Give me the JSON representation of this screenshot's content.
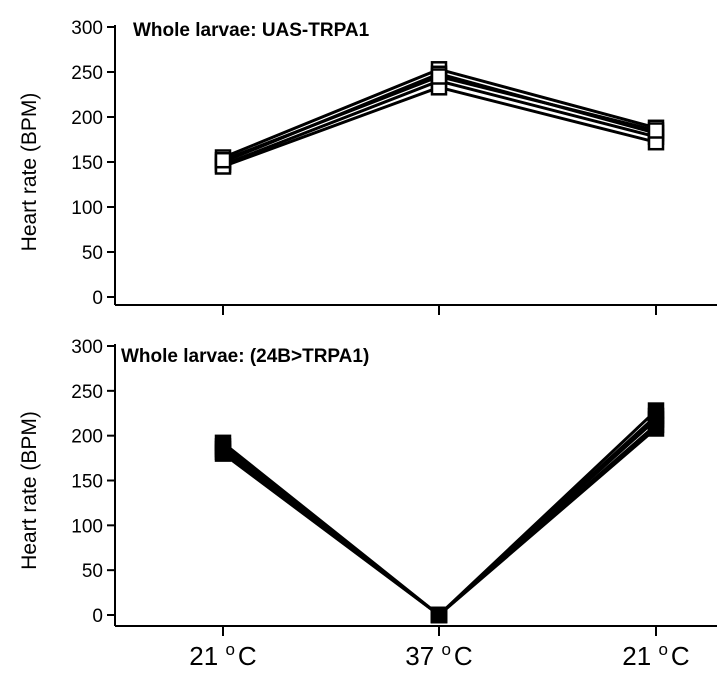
{
  "chart_data": [
    {
      "type": "line",
      "title": "Whole larvae: UAS-TRPA1",
      "ylabel": "Heart rate (BPM)",
      "xlabel": "",
      "ylim": [
        0,
        300
      ],
      "yticks": [
        0,
        50,
        100,
        150,
        200,
        250,
        300
      ],
      "categories": [
        "21 oC",
        "37 oC",
        "21 oC"
      ],
      "marker": "open-square",
      "series": [
        {
          "values": [
            155,
            253,
            188
          ]
        },
        {
          "values": [
            150,
            248,
            182
          ]
        },
        {
          "values": [
            147,
            240,
            178
          ]
        },
        {
          "values": [
            145,
            233,
            172
          ]
        },
        {
          "values": [
            152,
            245,
            185
          ]
        }
      ]
    },
    {
      "type": "line",
      "title": "Whole larvae: (24B>TRPA1)",
      "ylabel": "Heart rate (BPM)",
      "xlabel": "",
      "ylim": [
        0,
        300
      ],
      "yticks": [
        0,
        50,
        100,
        150,
        200,
        250,
        300
      ],
      "categories": [
        "21 oC",
        "37 oC",
        "21 oC"
      ],
      "marker": "filled-square",
      "series": [
        {
          "values": [
            192,
            0,
            228
          ]
        },
        {
          "values": [
            188,
            0,
            222
          ]
        },
        {
          "values": [
            185,
            0,
            218
          ]
        },
        {
          "values": [
            182,
            0,
            212
          ]
        },
        {
          "values": [
            180,
            0,
            208
          ]
        }
      ]
    }
  ],
  "x_axis": {
    "labels": [
      {
        "base": "21 ",
        "sup": "o",
        "unit": "C"
      },
      {
        "base": "37 ",
        "sup": "o",
        "unit": "C"
      },
      {
        "base": "21 ",
        "sup": "o",
        "unit": "C"
      }
    ]
  }
}
